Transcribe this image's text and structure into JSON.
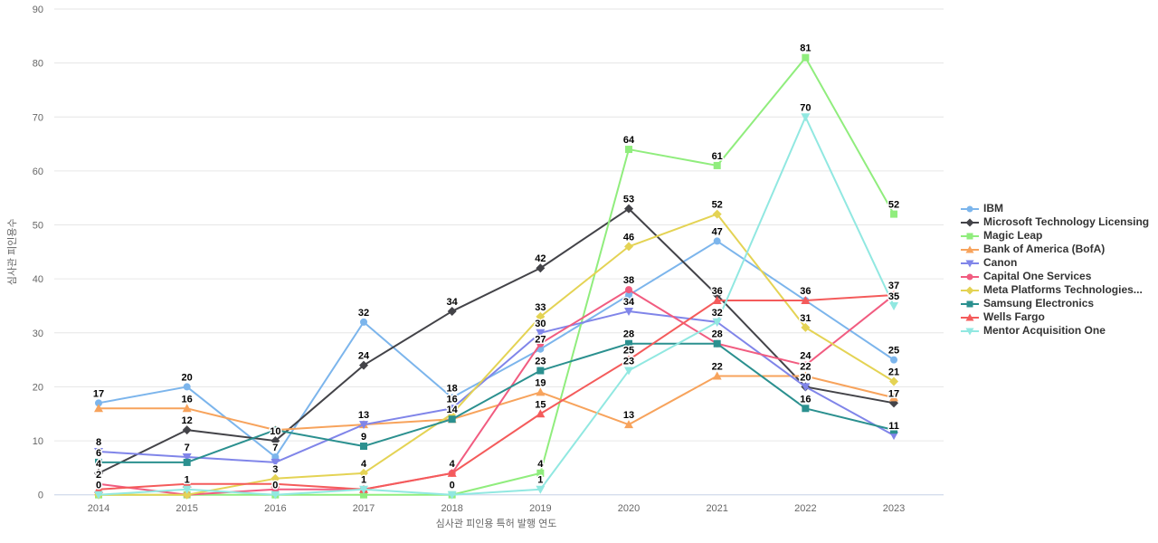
{
  "chart_data": {
    "type": "line",
    "title": "",
    "xlabel": "심사관 피인용 특허 발행 연도",
    "ylabel": "심사관 피인용수",
    "x_categories": [
      "2014",
      "2015",
      "2016",
      "2017",
      "2018",
      "2019",
      "2020",
      "2021",
      "2022",
      "2023"
    ],
    "y_ticks": [
      0,
      10,
      20,
      30,
      40,
      50,
      60,
      70,
      80,
      90
    ],
    "ylim": [
      0,
      90
    ],
    "grid": "horizontal",
    "legend_position": "right-middle",
    "axis_text_color": "#666666",
    "grid_color": "#e6e6e6",
    "axis_line_color": "#ccd6eb",
    "series": [
      {
        "name": "IBM",
        "color": "#7cb5ec",
        "marker": "circle",
        "values": [
          17,
          20,
          7,
          32,
          18,
          27,
          37,
          47,
          36,
          25
        ],
        "labels": [
          17,
          20,
          7,
          32,
          18,
          27,
          null,
          47,
          null,
          25
        ]
      },
      {
        "name": "Microsoft Technology Licensing",
        "color": "#434348",
        "marker": "diamond",
        "values": [
          4,
          12,
          10,
          24,
          34,
          42,
          53,
          37,
          20,
          17
        ],
        "labels": [
          4,
          12,
          10,
          24,
          34,
          42,
          53,
          null,
          20,
          17
        ]
      },
      {
        "name": "Magic Leap",
        "color": "#90ed7d",
        "marker": "square",
        "values": [
          0,
          0,
          0,
          0,
          0,
          4,
          64,
          61,
          81,
          52
        ],
        "labels": [
          0,
          null,
          0,
          null,
          0,
          4,
          64,
          61,
          81,
          52
        ]
      },
      {
        "name": "Bank of America (BofA)",
        "color": "#f7a35c",
        "marker": "triangle",
        "values": [
          16,
          16,
          12,
          13,
          14,
          19,
          13,
          22,
          22,
          18
        ],
        "labels": [
          null,
          16,
          null,
          13,
          14,
          19,
          13,
          22,
          22,
          null
        ]
      },
      {
        "name": "Canon",
        "color": "#8085e9",
        "marker": "triangle-down",
        "values": [
          8,
          7,
          6,
          13,
          16,
          30,
          34,
          32,
          20,
          11
        ],
        "labels": [
          8,
          7,
          null,
          null,
          16,
          30,
          34,
          null,
          null,
          11
        ]
      },
      {
        "name": "Capital One Services",
        "color": "#f15c80",
        "marker": "circle",
        "values": [
          2,
          0,
          1,
          1,
          4,
          28,
          38,
          28,
          24,
          37
        ],
        "labels": [
          2,
          null,
          null,
          1,
          4,
          null,
          38,
          28,
          24,
          null
        ]
      },
      {
        "name": "Meta Platforms Technologies...",
        "color": "#e4d354",
        "marker": "diamond",
        "values": [
          0,
          0,
          3,
          4,
          15,
          33,
          46,
          52,
          31,
          21
        ],
        "labels": [
          null,
          null,
          3,
          4,
          null,
          33,
          46,
          52,
          31,
          21
        ]
      },
      {
        "name": "Samsung Electronics",
        "color": "#2b908f",
        "marker": "square",
        "values": [
          6,
          6,
          12,
          9,
          14,
          23,
          28,
          28,
          16,
          12
        ],
        "labels": [
          6,
          null,
          null,
          9,
          null,
          23,
          28,
          null,
          16,
          null
        ]
      },
      {
        "name": "Wells Fargo",
        "color": "#f45b5b",
        "marker": "triangle",
        "values": [
          1,
          2,
          2,
          1,
          4,
          15,
          25,
          36,
          36,
          37
        ],
        "labels": [
          null,
          null,
          null,
          null,
          null,
          15,
          25,
          36,
          36,
          37
        ]
      },
      {
        "name": "Mentor Acquisition One",
        "color": "#91e8e1",
        "marker": "triangle-down",
        "values": [
          0,
          1,
          0,
          1,
          0,
          1,
          23,
          32,
          70,
          35
        ],
        "labels": [
          null,
          1,
          null,
          null,
          null,
          1,
          23,
          32,
          70,
          35
        ]
      }
    ]
  }
}
